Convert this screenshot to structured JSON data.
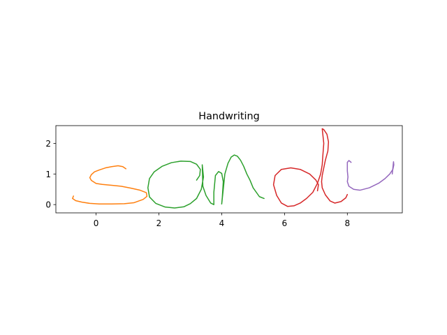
{
  "chart_data": {
    "type": "line",
    "title": "Handwriting",
    "xlabel": "",
    "ylabel": "",
    "xlim": [
      -1.28,
      9.75
    ],
    "ylim": [
      -0.27,
      2.58
    ],
    "x_ticks": [
      0,
      2,
      4,
      6,
      8
    ],
    "x_tick_labels": [
      "0",
      "2",
      "4",
      "6",
      "8"
    ],
    "y_ticks": [
      0,
      1,
      2
    ],
    "y_tick_labels": [
      "0",
      "1",
      "2"
    ],
    "grid": false,
    "legend": "none",
    "series": [
      {
        "color": "#ff7f0e",
        "x": [
          0.95,
          0.85,
          0.7,
          0.5,
          0.3,
          0.1,
          -0.05,
          -0.15,
          -0.2,
          -0.15,
          0.0,
          0.2,
          0.5,
          0.8,
          1.1,
          1.4,
          1.6,
          1.62,
          1.5,
          1.2,
          0.9,
          0.5,
          0.1,
          -0.2,
          -0.45,
          -0.65,
          -0.75,
          -0.72
        ],
        "y": [
          1.17,
          1.24,
          1.27,
          1.24,
          1.2,
          1.13,
          1.07,
          0.98,
          0.88,
          0.79,
          0.69,
          0.66,
          0.63,
          0.6,
          0.54,
          0.47,
          0.39,
          0.27,
          0.17,
          0.06,
          0.03,
          0.02,
          0.02,
          0.04,
          0.08,
          0.13,
          0.2,
          0.28
        ]
      },
      {
        "color": "#2ca02c",
        "x": [
          3.2,
          3.3,
          3.32,
          3.2,
          3.0,
          2.7,
          2.4,
          2.1,
          1.85,
          1.7,
          1.65,
          1.7,
          1.9,
          2.2,
          2.5,
          2.8,
          3.0,
          3.2,
          3.35,
          3.42,
          3.38,
          3.4,
          3.5,
          3.65,
          3.75,
          3.75,
          3.8,
          3.9,
          4.0,
          4.05,
          4.02,
          4.0,
          4.05,
          4.1,
          4.2,
          4.3,
          4.4,
          4.5,
          4.6,
          4.7,
          4.8,
          4.9,
          5.0,
          5.2,
          5.35
        ],
        "y": [
          0.8,
          0.95,
          1.15,
          1.32,
          1.41,
          1.42,
          1.37,
          1.25,
          1.07,
          0.85,
          0.55,
          0.25,
          0.04,
          -0.08,
          -0.11,
          -0.07,
          0.03,
          0.2,
          0.5,
          0.9,
          1.3,
          0.6,
          0.3,
          0.05,
          0.0,
          0.4,
          0.95,
          1.08,
          1.02,
          0.75,
          0.25,
          0.02,
          0.5,
          1.0,
          1.35,
          1.55,
          1.62,
          1.58,
          1.45,
          1.25,
          1.0,
          0.8,
          0.55,
          0.26,
          0.2
        ]
      },
      {
        "color": "#d62728",
        "x": [
          7.05,
          7.08,
          7.0,
          6.8,
          6.5,
          6.2,
          5.9,
          5.7,
          5.65,
          5.75,
          5.9,
          6.1,
          6.3,
          6.5,
          6.7,
          6.9,
          7.05,
          7.15,
          7.2,
          7.22,
          7.25,
          7.2,
          7.25,
          7.35,
          7.4,
          7.38,
          7.3,
          7.25,
          7.2,
          7.18,
          7.2,
          7.3,
          7.45,
          7.6,
          7.8,
          7.95,
          8.0
        ],
        "y": [
          0.45,
          0.65,
          0.8,
          1.0,
          1.15,
          1.2,
          1.15,
          0.95,
          0.65,
          0.3,
          0.05,
          -0.06,
          -0.04,
          0.05,
          0.2,
          0.4,
          0.7,
          1.0,
          1.3,
          1.6,
          2.0,
          2.48,
          2.45,
          2.3,
          2.05,
          1.75,
          1.45,
          1.2,
          0.95,
          0.75,
          0.55,
          0.32,
          0.12,
          0.05,
          0.1,
          0.22,
          0.33
        ]
      },
      {
        "color": "#9467bd",
        "x": [
          8.12,
          8.05,
          8.0,
          8.0,
          8.02,
          8.0,
          8.05,
          8.2,
          8.4,
          8.7,
          9.0,
          9.2,
          9.35,
          9.45,
          9.48,
          9.47,
          9.43
        ],
        "y": [
          1.38,
          1.44,
          1.38,
          1.1,
          0.9,
          0.75,
          0.6,
          0.5,
          0.47,
          0.55,
          0.7,
          0.85,
          1.0,
          1.15,
          1.3,
          1.4,
          1.0
        ]
      }
    ]
  }
}
